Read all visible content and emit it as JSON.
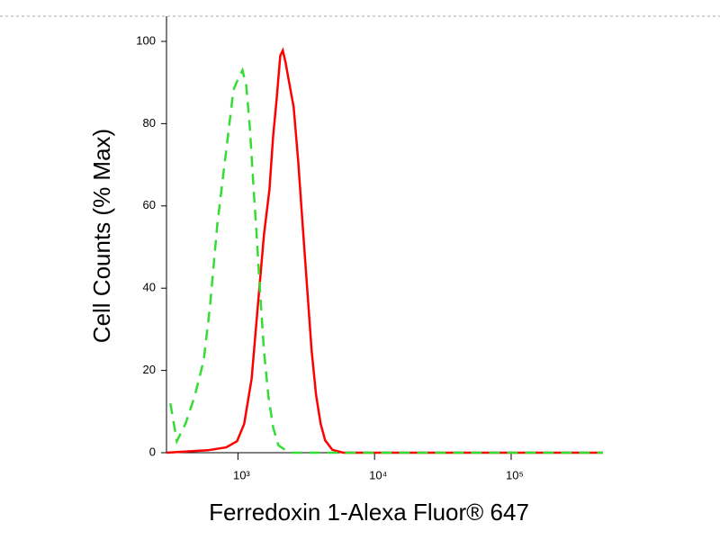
{
  "chart_data": {
    "type": "line",
    "xlabel": "Ferredoxin 1-Alexa Fluor® 647",
    "ylabel": "Cell Counts (% Max)",
    "xscale": "log",
    "xlim": [
      300,
      470000
    ],
    "ylim": [
      0,
      100
    ],
    "xticks": [
      {
        "value": 1000,
        "label": "10³"
      },
      {
        "value": 10000,
        "label": "10⁴"
      },
      {
        "value": 100000,
        "label": "10⁵"
      }
    ],
    "yticks": [
      0,
      20,
      40,
      60,
      80,
      100
    ],
    "series": [
      {
        "color": "#ff0000",
        "linestyle": "solid",
        "x": [
          300,
          600,
          820,
          985,
          1110,
          1260,
          1400,
          1550,
          1700,
          1810,
          1920,
          2040,
          2130,
          2230,
          2370,
          2560,
          2760,
          2980,
          3210,
          3460,
          3730,
          4030,
          4350,
          4910,
          5890,
          470000
        ],
        "values": [
          0,
          0.6,
          1.3,
          2.8,
          7,
          18,
          36,
          53,
          64,
          77,
          86,
          96.5,
          97.8,
          95,
          90,
          84,
          71,
          55,
          40,
          25,
          14,
          7,
          3,
          0.7,
          0,
          0
        ]
      },
      {
        "color": "#33dd33",
        "linestyle": "dashed",
        "x": [
          320,
          357,
          415,
          483,
          562,
          625,
          706,
          773,
          847,
          927,
          1000,
          1080,
          1150,
          1220,
          1290,
          1370,
          1460,
          1550,
          1670,
          1810,
          1980,
          2370,
          470000
        ],
        "values": [
          12,
          2.8,
          7.2,
          13.8,
          22.5,
          35.7,
          55.4,
          66.3,
          77.2,
          88.2,
          90.8,
          93,
          89.3,
          79.4,
          66.3,
          53.2,
          37.9,
          24.7,
          13.8,
          6.1,
          1.8,
          0,
          0
        ]
      }
    ]
  }
}
